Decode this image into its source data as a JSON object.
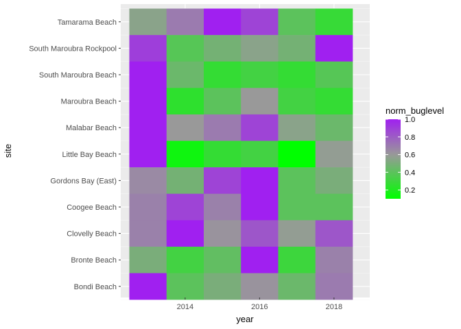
{
  "chart_data": {
    "type": "heatmap",
    "xlabel": "year",
    "ylabel": "site",
    "x_ticks": [
      2014,
      2016,
      2018
    ],
    "years": [
      2013,
      2014,
      2015,
      2016,
      2017,
      2018
    ],
    "sites_top_to_bottom": [
      "Tamarama Beach",
      "South Maroubra Rockpool",
      "South Maroubra Beach",
      "Maroubra Beach",
      "Malabar Beach",
      "Little Bay Beach",
      "Gordons Bay (East)",
      "Coogee Beach",
      "Clovelly Beach",
      "Bronte Beach",
      "Bondi Beach"
    ],
    "values": [
      [
        0.55,
        0.7,
        1.0,
        0.88,
        0.4,
        0.28
      ],
      [
        0.9,
        0.38,
        0.48,
        0.55,
        0.48,
        1.0
      ],
      [
        1.0,
        0.45,
        0.27,
        0.32,
        0.27,
        0.38
      ],
      [
        1.0,
        0.25,
        0.4,
        0.6,
        0.32,
        0.27
      ],
      [
        1.0,
        0.6,
        0.7,
        0.88,
        0.55,
        0.45
      ],
      [
        1.0,
        0.15,
        0.27,
        0.32,
        0.1,
        0.58
      ],
      [
        0.65,
        0.48,
        0.88,
        1.0,
        0.4,
        0.5
      ],
      [
        0.68,
        0.88,
        0.68,
        1.0,
        0.4,
        0.4
      ],
      [
        0.68,
        1.0,
        0.62,
        0.82,
        0.58,
        0.82
      ],
      [
        0.5,
        0.32,
        0.42,
        1.0,
        0.3,
        0.68
      ],
      [
        1.0,
        0.4,
        0.5,
        0.62,
        0.45,
        0.7
      ]
    ],
    "colour_scale": {
      "low": "#00ff00",
      "mid": "#999999",
      "high": "#a020f0",
      "midpoint": 0.6
    },
    "legend": {
      "title": "norm_buglevel",
      "ticks": [
        "0.2",
        "0.4",
        "0.6",
        "0.8",
        "1.0"
      ],
      "tick_values": [
        0.2,
        0.4,
        0.6,
        0.8,
        1.0
      ],
      "range": [
        0.1,
        1.0
      ],
      "placement": "right"
    },
    "panel_background": "#ebebeb",
    "grid": true
  }
}
